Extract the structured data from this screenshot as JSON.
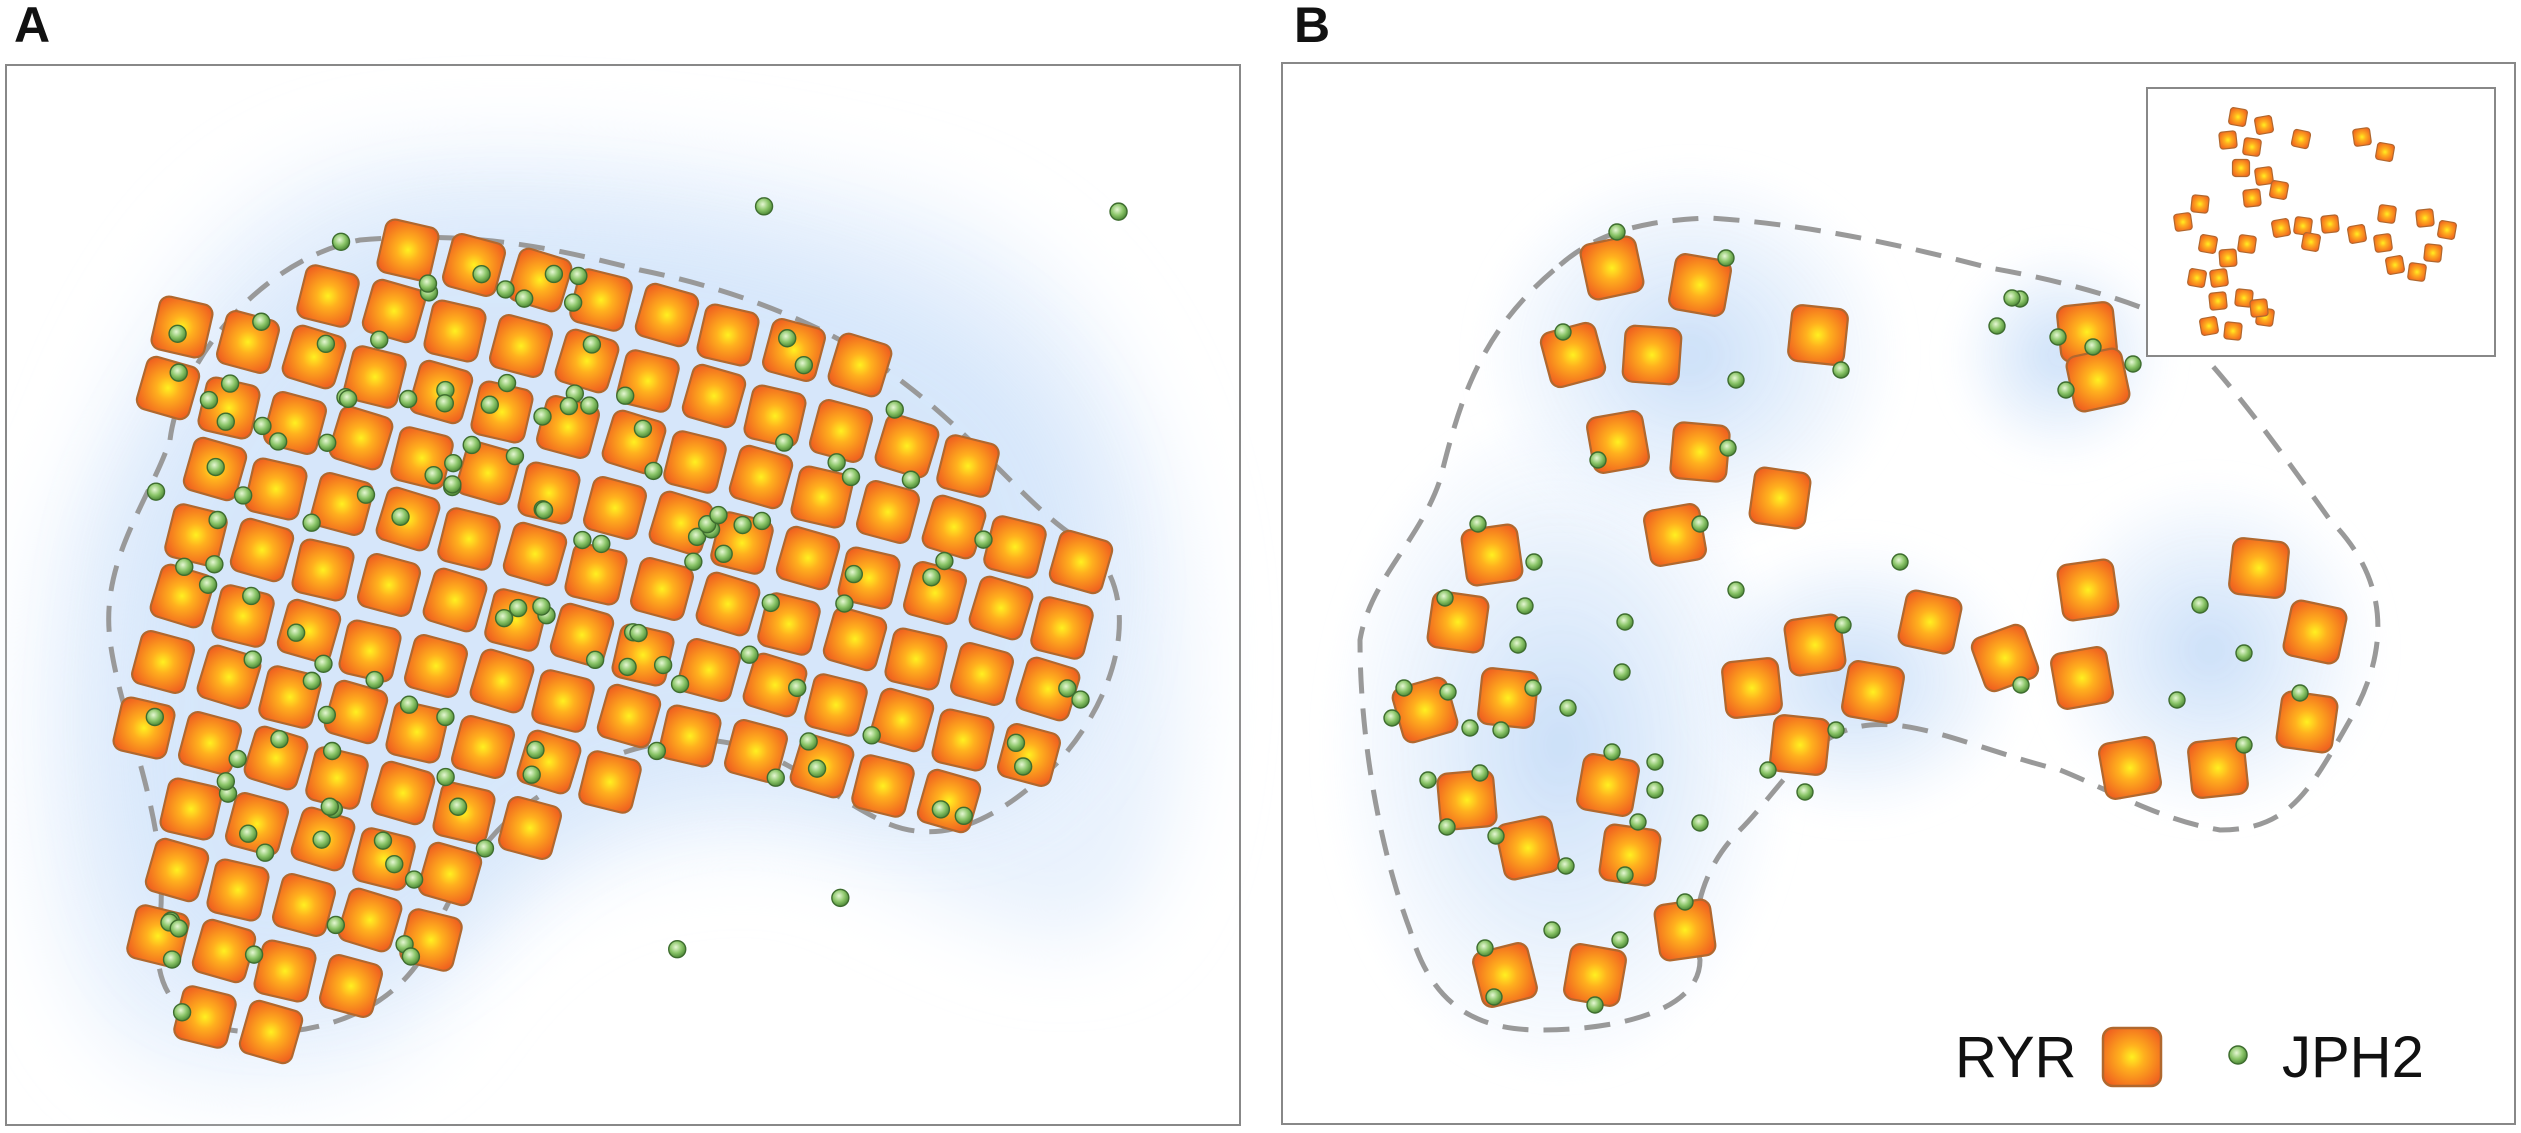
{
  "panels": {
    "a": {
      "letter": "A"
    },
    "b": {
      "letter": "B"
    }
  },
  "legend": {
    "ryr_label": "RYR",
    "jph2_label": "JPH2"
  },
  "colors": {
    "ryr_center": "#fff021",
    "ryr_mid": "#ff9f1c",
    "ryr_edge": "#f26522",
    "ryr_stroke": "#b0682e",
    "jph2_center": "#d9f2c4",
    "jph2_edge": "#5f9a45",
    "jph2_stroke": "#3e6d2f",
    "cluster_glow": "#bcd6f5",
    "outline_dash": "#999999",
    "frame": "#888888"
  },
  "icons": {
    "ryr": "orange-rounded-square-icon",
    "jph2": "green-sphere-icon"
  }
}
